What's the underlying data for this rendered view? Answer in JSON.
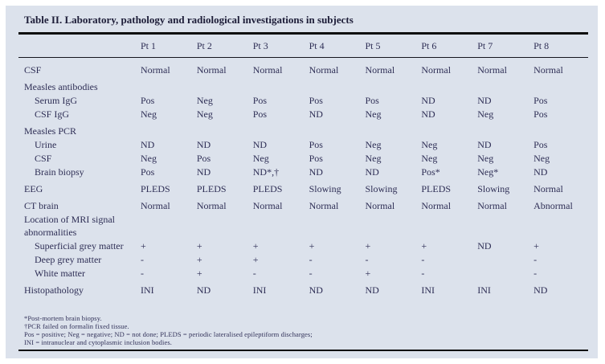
{
  "title": "Table II. Laboratory, pathology and radiological investigations in subjects",
  "columns": [
    "Pt 1",
    "Pt 2",
    "Pt 3",
    "Pt 4",
    "Pt 5",
    "Pt 6",
    "Pt 7",
    "Pt 8"
  ],
  "rows": [
    {
      "label": "CSF",
      "type": "group-data",
      "values": [
        "Normal",
        "Normal",
        "Normal",
        "Normal",
        "Normal",
        "Normal",
        "Normal",
        "Normal"
      ]
    },
    {
      "label": "Measles antibodies",
      "type": "group",
      "values": [
        "",
        "",
        "",
        "",
        "",
        "",
        "",
        ""
      ]
    },
    {
      "label": "Serum IgG",
      "type": "sub",
      "values": [
        "Pos",
        "Neg",
        "Pos",
        "Pos",
        "Pos",
        "ND",
        "ND",
        "Pos"
      ]
    },
    {
      "label": "CSF IgG",
      "type": "sub",
      "values": [
        "Neg",
        "Neg",
        "Pos",
        "ND",
        "Neg",
        "ND",
        "Neg",
        "Pos"
      ]
    },
    {
      "label": "Measles PCR",
      "type": "group",
      "values": [
        "",
        "",
        "",
        "",
        "",
        "",
        "",
        ""
      ]
    },
    {
      "label": "Urine",
      "type": "sub",
      "values": [
        "ND",
        "ND",
        "ND",
        "Pos",
        "Neg",
        "Neg",
        "ND",
        "Pos"
      ]
    },
    {
      "label": "CSF",
      "type": "sub",
      "values": [
        "Neg",
        "Pos",
        "Neg",
        "Pos",
        "Neg",
        "Neg",
        "Neg",
        "Neg"
      ]
    },
    {
      "label": "Brain biopsy",
      "type": "sub",
      "values": [
        "Pos",
        "ND",
        "ND*,†",
        "ND",
        "ND",
        "Pos*",
        "Neg*",
        "ND"
      ]
    },
    {
      "label": "EEG",
      "type": "group-data",
      "values": [
        "PLEDS",
        "PLEDS",
        "PLEDS",
        "Slowing",
        "Slowing",
        "PLEDS",
        "Slowing",
        "Normal"
      ]
    },
    {
      "label": "CT brain",
      "type": "group-data",
      "values": [
        "Normal",
        "Normal",
        "Normal",
        "Normal",
        "Normal",
        "Normal",
        "Normal",
        "Abnormal"
      ]
    },
    {
      "label": "Location of MRI signal abnormalities",
      "type": "group wrap",
      "values": [
        "",
        "",
        "",
        "",
        "",
        "",
        "",
        ""
      ]
    },
    {
      "label": "Superficial grey matter",
      "type": "sub",
      "values": [
        "+",
        "+",
        "+",
        "+",
        "+",
        "+",
        "ND",
        "+"
      ]
    },
    {
      "label": "Deep grey matter",
      "type": "sub",
      "values": [
        "-",
        "+",
        "+",
        "-",
        "-",
        "-",
        "",
        "-"
      ]
    },
    {
      "label": "White matter",
      "type": "sub",
      "values": [
        "-",
        "+",
        "-",
        "-",
        "+",
        "-",
        "",
        "-"
      ]
    },
    {
      "label": "Histopathology",
      "type": "group-data",
      "values": [
        "INI",
        "ND",
        "INI",
        "ND",
        "ND",
        "INI",
        "INI",
        "ND"
      ]
    }
  ],
  "footnotes": [
    "*Post-mortem brain biopsy.",
    "†PCR failed on formalin fixed tissue.",
    "Pos = positive; Neg = negative; ND = not done; PLEDS = periodic lateralised epileptiform discharges;",
    "INI = intranuclear and cytoplasmic inclusion bodies."
  ],
  "colors": {
    "page_bg": "#ffffff",
    "card_bg": "#dce2ec",
    "text": "#2e2e55",
    "title_text": "#1d1d38",
    "rule": "#0e0e0e"
  }
}
